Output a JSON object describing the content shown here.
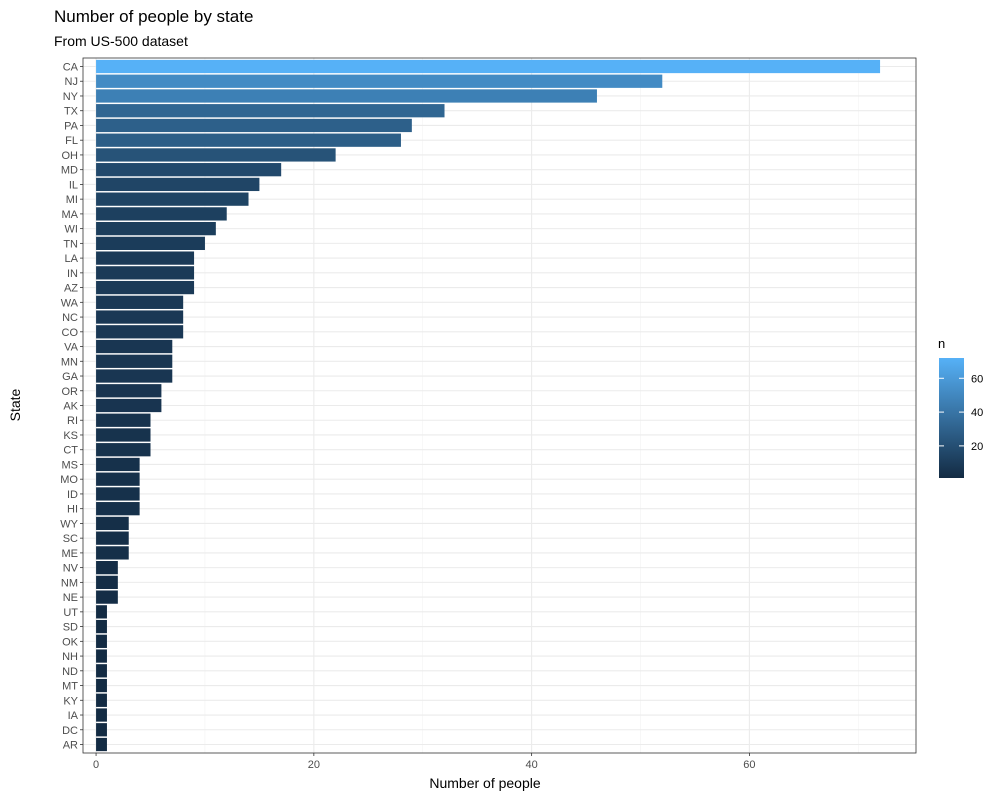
{
  "chart_data": {
    "type": "bar",
    "orientation": "horizontal",
    "title": "Number of people by state",
    "subtitle": "From US-500 dataset",
    "xlabel": "Number of people",
    "ylabel": "State",
    "categories": [
      "CA",
      "NJ",
      "NY",
      "TX",
      "PA",
      "FL",
      "OH",
      "MD",
      "IL",
      "MI",
      "MA",
      "WI",
      "TN",
      "LA",
      "IN",
      "AZ",
      "WA",
      "NC",
      "CO",
      "VA",
      "MN",
      "GA",
      "OR",
      "AK",
      "RI",
      "KS",
      "CT",
      "MS",
      "MO",
      "ID",
      "HI",
      "WY",
      "SC",
      "ME",
      "NV",
      "NM",
      "NE",
      "UT",
      "SD",
      "OK",
      "NH",
      "ND",
      "MT",
      "KY",
      "IA",
      "DC",
      "AR"
    ],
    "values": [
      72,
      52,
      46,
      32,
      29,
      28,
      22,
      17,
      15,
      14,
      12,
      11,
      10,
      9,
      9,
      9,
      8,
      8,
      8,
      7,
      7,
      7,
      6,
      6,
      5,
      5,
      5,
      4,
      4,
      4,
      4,
      3,
      3,
      3,
      2,
      2,
      2,
      1,
      1,
      1,
      1,
      1,
      1,
      1,
      1,
      1,
      1
    ],
    "xlim": [
      -1.2,
      75.3
    ],
    "xticks": [
      0,
      20,
      40,
      60
    ],
    "grid": true,
    "legend": {
      "title": "n",
      "position": "right",
      "ticks": [
        20,
        40,
        60
      ],
      "range": [
        1,
        72
      ],
      "color_low": "#132B43",
      "color_high": "#56B1F7"
    }
  }
}
